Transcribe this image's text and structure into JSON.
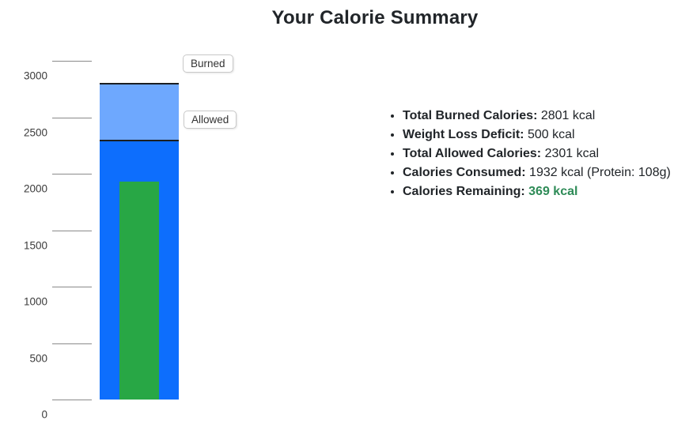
{
  "page": {
    "title": "Your Calorie Summary"
  },
  "chart_data": {
    "type": "bar",
    "title": "Your Calorie Summary",
    "xlabel": "",
    "ylabel": "",
    "ylim": [
      0,
      3100
    ],
    "yticks": [
      0,
      500,
      1000,
      1500,
      2000,
      2500,
      3000
    ],
    "grid": false,
    "legend_position": "right-of-bar",
    "annotations": [
      "Burned",
      "Allowed"
    ],
    "series": [
      {
        "name": "Burned",
        "value": 2801,
        "color": "#6ea8fe"
      },
      {
        "name": "Allowed",
        "value": 2301,
        "color": "#0d6efd"
      },
      {
        "name": "Consumed",
        "value": 1932,
        "color": "#28a745"
      }
    ]
  },
  "summary": {
    "highlight_color": "#2e8b57",
    "items": [
      {
        "label": "Total Burned Calories:",
        "value": "2801 kcal",
        "highlight": false
      },
      {
        "label": "Weight Loss Deficit:",
        "value": "500 kcal",
        "highlight": false
      },
      {
        "label": "Total Allowed Calories:",
        "value": "2301 kcal",
        "highlight": false
      },
      {
        "label": "Calories Consumed:",
        "value": "1932 kcal (Protein: 108g)",
        "highlight": false
      },
      {
        "label": "Calories Remaining:",
        "value": "369 kcal",
        "highlight": true
      }
    ]
  }
}
